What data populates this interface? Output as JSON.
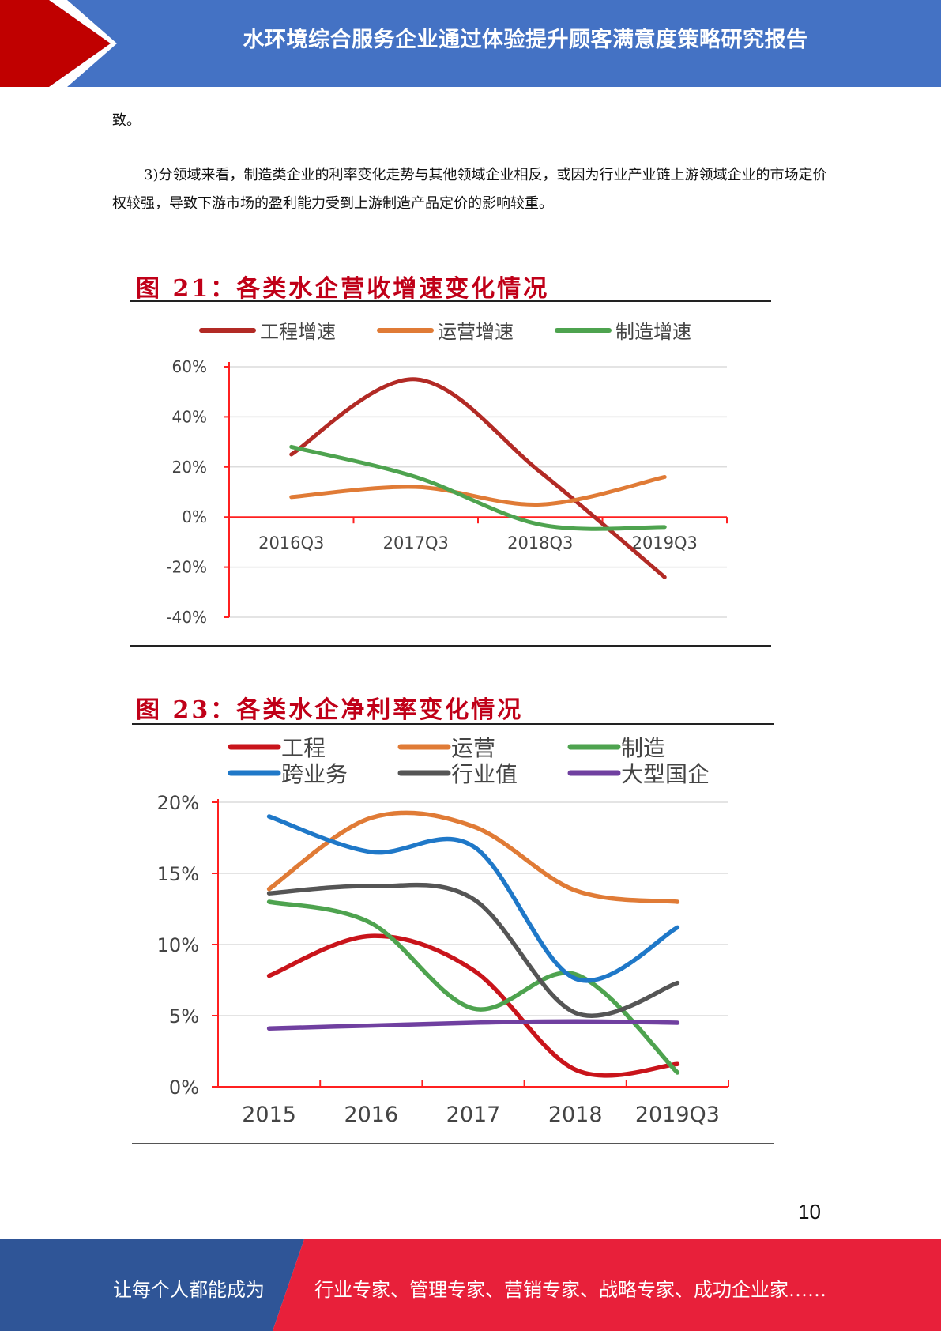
{
  "header": {
    "title": "水环境综合服务企业通过体验提升顾客满意度策略研究报告"
  },
  "body": {
    "line1": "致。",
    "para2": "3)分领域来看，制造类企业的利率变化走势与其他领域企业相反，或因为行业产业链上游领域企业的市场定价权较强，导致下游市场的盈利能力受到上游制造产品定价的影响较重。"
  },
  "chart_data": [
    {
      "type": "line",
      "title": "图 21：各类水企营收增速变化情况",
      "categories": [
        "2016Q3",
        "2017Q3",
        "2018Q3",
        "2019Q3"
      ],
      "y_ticks": [
        "60%",
        "40%",
        "20%",
        "0%",
        "-20%",
        "-40%"
      ],
      "ylim": [
        -40,
        60
      ],
      "grid": true,
      "legend_position": "top",
      "series": [
        {
          "name": "工程增速",
          "color": "#b22a25",
          "values": [
            25,
            55,
            18,
            -24
          ]
        },
        {
          "name": "运营增速",
          "color": "#e07b36",
          "values": [
            8,
            12,
            5,
            16
          ]
        },
        {
          "name": "制造增速",
          "color": "#4ea34f",
          "values": [
            28,
            16,
            -3,
            -4
          ]
        }
      ]
    },
    {
      "type": "line",
      "title": "图 23：各类水企净利率变化情况",
      "categories": [
        "2015",
        "2016",
        "2017",
        "2018",
        "2019Q3"
      ],
      "y_ticks": [
        "20%",
        "15%",
        "10%",
        "5%",
        "0%"
      ],
      "ylim": [
        0,
        20
      ],
      "grid": true,
      "legend_position": "top",
      "series": [
        {
          "name": "工程",
          "color": "#c9141b",
          "values": [
            7.8,
            10.6,
            8.2,
            1.2,
            1.6
          ]
        },
        {
          "name": "运营",
          "color": "#e07b36",
          "values": [
            13.9,
            18.9,
            18.3,
            13.8,
            13.0
          ]
        },
        {
          "name": "制造",
          "color": "#4ea34f",
          "values": [
            13.0,
            11.5,
            5.5,
            7.9,
            1.0
          ]
        },
        {
          "name": "跨业务",
          "color": "#1f78c8",
          "values": [
            19.0,
            16.5,
            16.9,
            7.6,
            11.2
          ]
        },
        {
          "name": "行业值",
          "color": "#555555",
          "values": [
            13.6,
            14.1,
            13.2,
            5.2,
            7.3
          ]
        },
        {
          "name": "大型国企",
          "color": "#7040a0",
          "values": [
            4.1,
            4.3,
            4.5,
            4.6,
            4.5
          ]
        }
      ]
    }
  ],
  "page_number": "10",
  "footer": {
    "left": "让每个人都能成为",
    "right": "行业专家、管理专家、营销专家、战略专家、成功企业家……"
  },
  "colors": {
    "header_blue": "#4472c4",
    "header_red": "#c00000",
    "footer_blue": "#2f5597",
    "footer_red": "#e8203a"
  }
}
